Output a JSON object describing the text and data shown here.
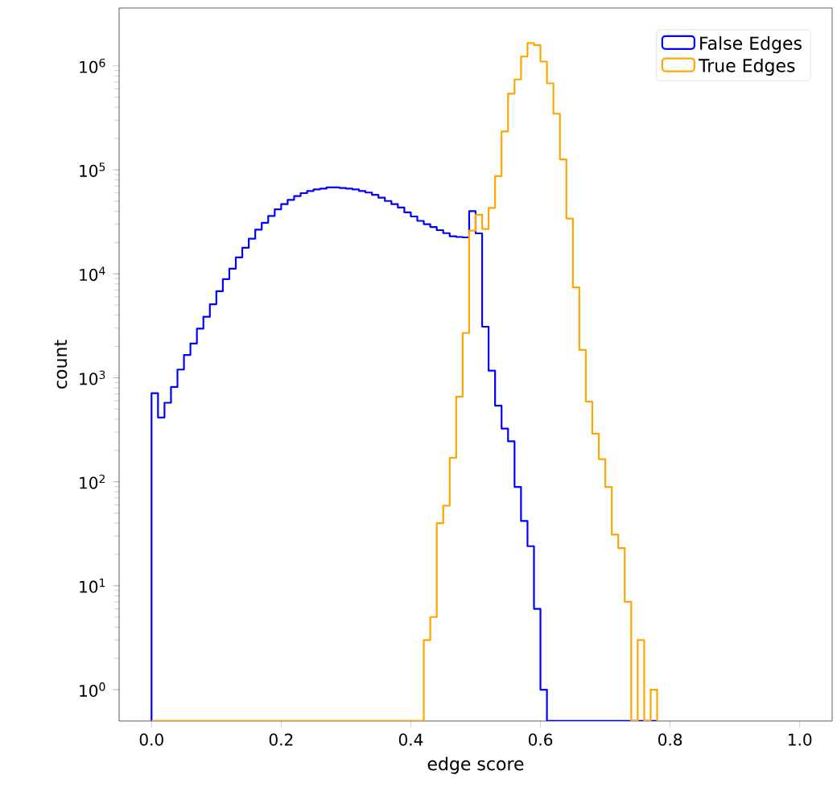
{
  "chart_data": {
    "type": "histogram",
    "xlabel": "edge score",
    "ylabel": "count",
    "log": "y",
    "legend": "top right",
    "xlim": [
      -0.05,
      1.05
    ],
    "ylim": [
      0.5,
      3600000
    ],
    "xticks": [
      {
        "value": 0,
        "label": "0.0"
      },
      {
        "value": 0.2,
        "label": "0.2"
      },
      {
        "value": 0.4,
        "label": "0.4"
      },
      {
        "value": 0.6,
        "label": "0.6"
      },
      {
        "value": 0.8,
        "label": "0.8"
      },
      {
        "value": 1.0,
        "label": "1.0"
      }
    ],
    "yticks": [
      {
        "value": 1,
        "label": "10$^{0}$"
      },
      {
        "value": 10,
        "label": "10$^{1}$"
      },
      {
        "value": 100,
        "label": "10$^{2}$"
      },
      {
        "value": 1000,
        "label": "10$^{3}$"
      },
      {
        "value": 10000,
        "label": "10$^{4}$"
      },
      {
        "value": 100000,
        "label": "10$^{5}$"
      },
      {
        "value": 1000000,
        "label": "10$^{6}$"
      }
    ],
    "bins": [
      0,
      0.01,
      0.02,
      0.03,
      0.04,
      0.05,
      0.06,
      0.07,
      0.08,
      0.09,
      0.1,
      0.11,
      0.12,
      0.13,
      0.14,
      0.15,
      0.16,
      0.17,
      0.18,
      0.19,
      0.2,
      0.21,
      0.22,
      0.23,
      0.24,
      0.25,
      0.26,
      0.27,
      0.28,
      0.29,
      0.3,
      0.31,
      0.32,
      0.33,
      0.34,
      0.35,
      0.36,
      0.37,
      0.38,
      0.39,
      0.4,
      0.41,
      0.42,
      0.43,
      0.44,
      0.45,
      0.46,
      0.47,
      0.48,
      0.49,
      0.5,
      0.51,
      0.52,
      0.53,
      0.54,
      0.55,
      0.56,
      0.57,
      0.58,
      0.59,
      0.6,
      0.61,
      0.62,
      0.63,
      0.64,
      0.65,
      0.66,
      0.67,
      0.68,
      0.69,
      0.7,
      0.71,
      0.72,
      0.73,
      0.74,
      0.75,
      0.76,
      0.77,
      0.78
    ],
    "series": [
      {
        "name": "False Edges",
        "color": "#0000ff",
        "values": [
          710,
          415,
          575,
          815,
          1200,
          1660,
          2140,
          2970,
          3860,
          5100,
          6800,
          8900,
          11200,
          14400,
          17800,
          21800,
          26600,
          31000,
          36000,
          41700,
          46800,
          51500,
          56000,
          59700,
          62600,
          64800,
          66000,
          67800,
          67800,
          67000,
          66000,
          64800,
          62600,
          60500,
          57500,
          54000,
          50200,
          46800,
          43400,
          39000,
          35600,
          32300,
          30000,
          28200,
          26300,
          24600,
          23000,
          22600,
          22400,
          40000,
          24500,
          3100,
          1170,
          540,
          325,
          245,
          89,
          42,
          24,
          6,
          1,
          null,
          null,
          null,
          null,
          null,
          null,
          null,
          null,
          null,
          null,
          null,
          null,
          null,
          null,
          null,
          null,
          null
        ]
      },
      {
        "name": "True Edges",
        "color": "#ffa500",
        "values": [
          null,
          null,
          null,
          null,
          null,
          null,
          null,
          null,
          null,
          null,
          null,
          null,
          null,
          null,
          null,
          null,
          null,
          null,
          null,
          null,
          null,
          null,
          null,
          null,
          null,
          null,
          null,
          null,
          null,
          null,
          null,
          null,
          null,
          null,
          null,
          null,
          null,
          null,
          null,
          null,
          null,
          null,
          3,
          5,
          40,
          59,
          170,
          660,
          2700,
          26000,
          37000,
          27000,
          43000,
          87000,
          234000,
          540000,
          740000,
          1230000,
          1660000,
          1580000,
          1100000,
          680000,
          347000,
          126000,
          34000,
          7400,
          1850,
          590,
          290,
          165,
          89,
          31,
          23,
          7,
          null,
          3,
          null,
          1
        ]
      }
    ]
  }
}
